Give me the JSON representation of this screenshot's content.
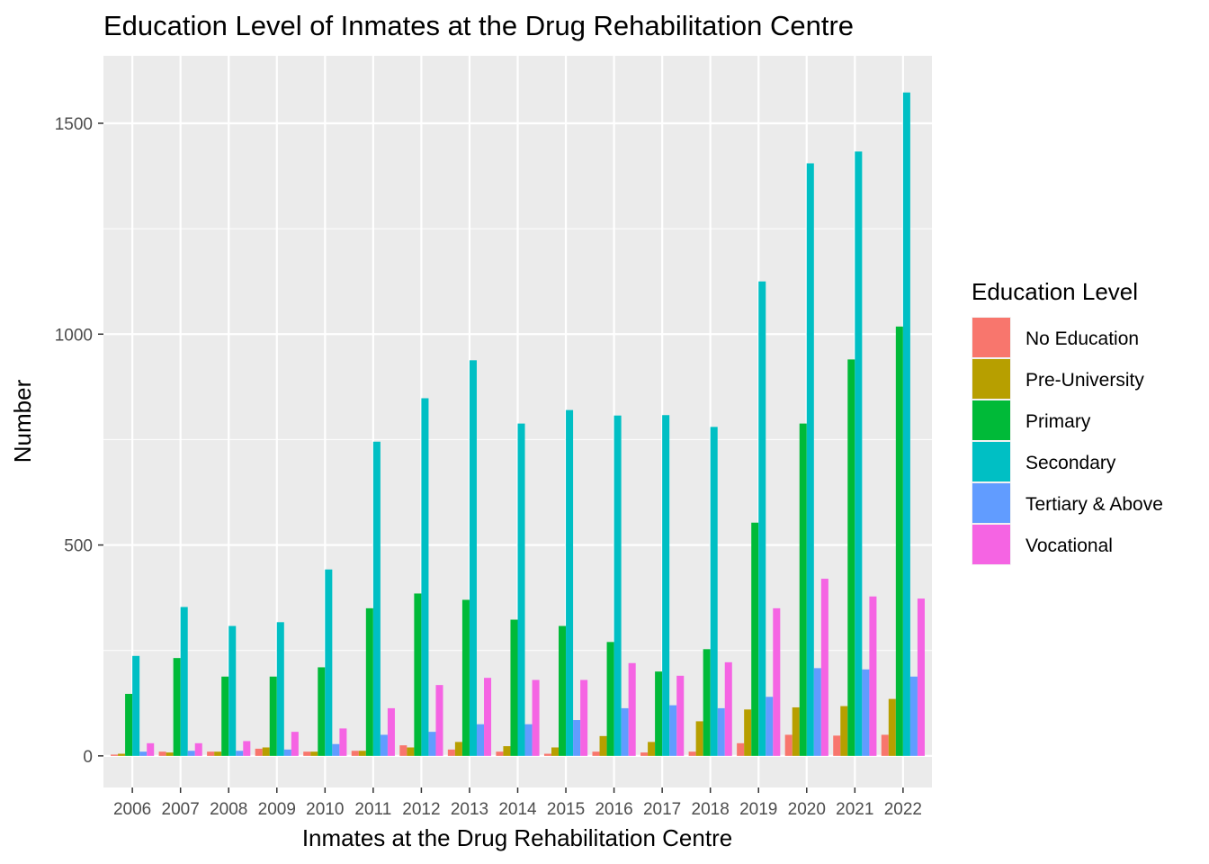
{
  "chart_data": {
    "type": "bar",
    "title": "Education Level of Inmates at the Drug Rehabilitation Centre",
    "xlabel": "Inmates at the Drug Rehabilitation Centre",
    "ylabel": "Number",
    "ylim": [
      -75,
      1660
    ],
    "yticks": [
      0,
      500,
      1000,
      1500
    ],
    "grid": true,
    "legend_position": "right",
    "legend_title": "Education Level",
    "categories": [
      "2006",
      "2007",
      "2008",
      "2009",
      "2010",
      "2011",
      "2012",
      "2013",
      "2014",
      "2015",
      "2016",
      "2017",
      "2018",
      "2019",
      "2020",
      "2021",
      "2022"
    ],
    "series": [
      {
        "name": "No Education",
        "color": "#F8766D",
        "values": [
          3,
          10,
          10,
          17,
          10,
          12,
          25,
          15,
          10,
          5,
          10,
          8,
          10,
          30,
          50,
          48,
          50
        ]
      },
      {
        "name": "Pre-University",
        "color": "#B79F00",
        "values": [
          5,
          8,
          10,
          20,
          10,
          12,
          20,
          33,
          23,
          20,
          47,
          33,
          82,
          110,
          115,
          118,
          135
        ]
      },
      {
        "name": "Primary",
        "color": "#00BA38",
        "values": [
          147,
          232,
          188,
          188,
          210,
          350,
          385,
          370,
          323,
          308,
          270,
          200,
          253,
          553,
          788,
          940,
          1018
        ]
      },
      {
        "name": "Secondary",
        "color": "#00BFC4",
        "values": [
          237,
          353,
          308,
          317,
          442,
          745,
          848,
          938,
          788,
          820,
          807,
          808,
          780,
          1125,
          1405,
          1433,
          1573
        ]
      },
      {
        "name": "Tertiary & Above",
        "color": "#619CFF",
        "values": [
          10,
          12,
          12,
          15,
          28,
          50,
          57,
          75,
          75,
          85,
          113,
          120,
          113,
          140,
          208,
          205,
          188
        ]
      },
      {
        "name": "Vocational",
        "color": "#F564E3",
        "values": [
          30,
          30,
          35,
          57,
          65,
          113,
          168,
          185,
          180,
          180,
          220,
          190,
          222,
          350,
          420,
          378,
          373
        ]
      }
    ]
  }
}
